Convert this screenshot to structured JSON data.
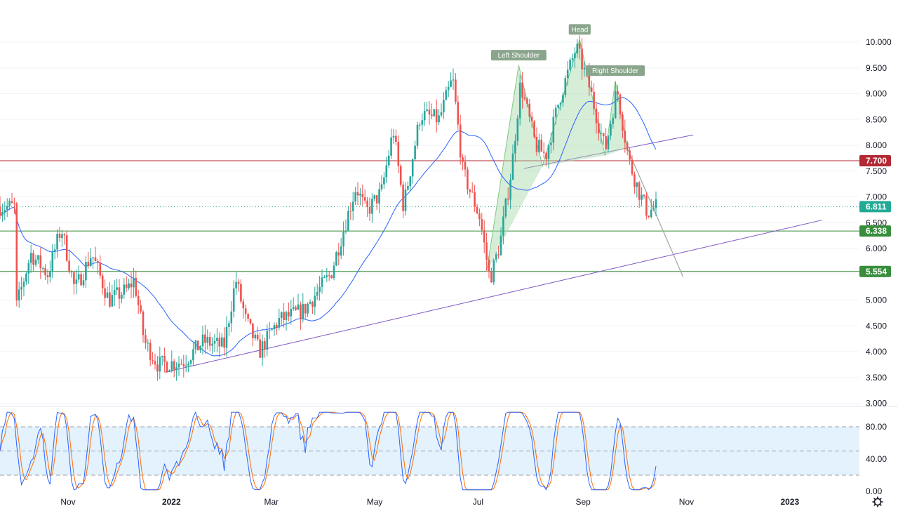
{
  "chart_data": {
    "type": "candlestick",
    "price_axis": {
      "ticks": [
        "10.000",
        "9.500",
        "9.000",
        "8.500",
        "8.000",
        "7.500",
        "7.000",
        "6.500",
        "6.000",
        "5.500",
        "5.000",
        "4.500",
        "4.000",
        "3.500",
        "3.000"
      ],
      "range": [
        3.0,
        10.0
      ]
    },
    "time_axis": {
      "ticks": [
        "Nov",
        "2022",
        "Mar",
        "May",
        "Jul",
        "Sep",
        "Nov",
        "2023"
      ]
    },
    "price_tags": [
      {
        "value": 7.7,
        "label": "7.700",
        "color": "#b22833"
      },
      {
        "value": 6.811,
        "label": "6.811",
        "color": "#22ab94"
      },
      {
        "value": 6.338,
        "label": "6.338",
        "color": "#388e3c"
      },
      {
        "value": 5.554,
        "label": "5.554",
        "color": "#388e3c"
      }
    ],
    "pattern": {
      "name": "head and shoulders",
      "labels": [
        "Left Shoulder",
        "Head",
        "Right Shoulder"
      ],
      "points": [
        {
          "date": "2022-07-06",
          "price": 5.55
        },
        {
          "date": "2022-07-25",
          "price": 9.55
        },
        {
          "date": "2022-08-08",
          "price": 7.6
        },
        {
          "date": "2022-08-30",
          "price": 10.05
        },
        {
          "date": "2022-09-14",
          "price": 7.8
        },
        {
          "date": "2022-09-20",
          "price": 9.25
        },
        {
          "date": "2022-09-27",
          "price": 7.95
        },
        {
          "date": "2022-10-30",
          "price": 5.45
        }
      ],
      "fill_color": "#a5d6a7"
    },
    "trendlines": [
      {
        "name": "neckline",
        "from": {
          "date": "2022-07-28",
          "price": 7.55
        },
        "to": {
          "date": "2022-11-05",
          "price": 8.2
        },
        "color": "#7e57c2"
      },
      {
        "name": "support",
        "from": {
          "date": "2021-12-28",
          "price": 3.6
        },
        "to": {
          "date": "2023-01-20",
          "price": 6.55
        },
        "color": "#7e57c2"
      }
    ],
    "ma_color": "#2962ff",
    "candle_colors": {
      "up": "#26a69a",
      "down": "#ef5350"
    },
    "oscillator": {
      "ticks": [
        "80.00",
        "40.00",
        "0.00"
      ],
      "levels": [
        80,
        50,
        20
      ],
      "range": [
        0,
        100
      ],
      "band": [
        20,
        80
      ],
      "colors": {
        "k": "#2962ff",
        "d": "#ff6d00",
        "band": "#e3f2fd"
      }
    }
  }
}
